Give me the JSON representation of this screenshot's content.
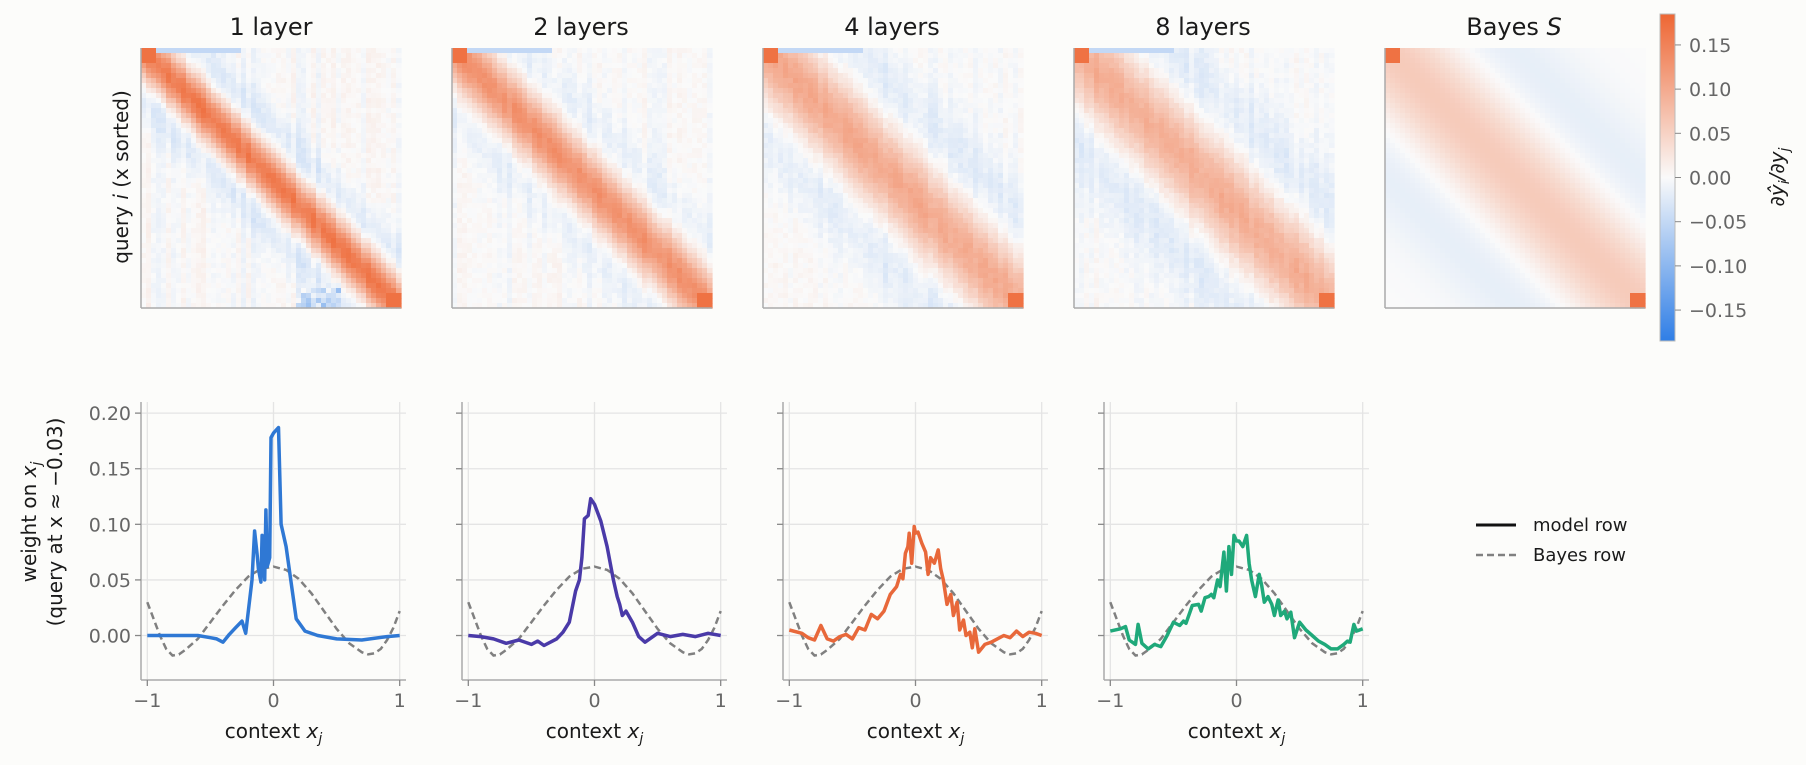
{
  "figure": {
    "background": "#fcfcfa"
  },
  "heatmaps": {
    "titles": [
      "1 layer",
      "2 layers",
      "4 layers",
      "8 layers"
    ],
    "bayes_title": "Bayes",
    "bayes_title_var": "S",
    "ylabel_prefix": "query",
    "ylabel_var": "i",
    "ylabel_suffix": "(x sorted)"
  },
  "colorbar": {
    "ticks": [
      "0.15",
      "0.10",
      "0.05",
      "0.00",
      "−0.05",
      "−0.10",
      "−0.15"
    ],
    "label": "∂ŷ_i/∂y_j",
    "low_color": "#2f7ee6",
    "mid_color": "#fafafa",
    "high_color": "#ee6633"
  },
  "lines": {
    "xlabel_prefix": "context",
    "xlabel_var": "x_j",
    "ylabel_line1": "weight on x_j",
    "ylabel_line2": "(query at x ≈ −0.03)",
    "xticks": [
      "−1",
      "0",
      "1"
    ],
    "yticks": [
      "0.20",
      "0.15",
      "0.10",
      "0.05",
      "0.00"
    ]
  },
  "legend": {
    "model": "model row",
    "bayes": "Bayes row"
  },
  "chart_data": {
    "type": "line",
    "xlim": [
      -1.05,
      1.05
    ],
    "ylim": [
      -0.04,
      0.21
    ],
    "grid": true,
    "legend_position": "right",
    "series_colors": [
      "#2f78d4",
      "#4a3aa8",
      "#e8683a",
      "#1fa97a"
    ],
    "bayes_row": {
      "x": [
        -1.0,
        -0.95,
        -0.9,
        -0.85,
        -0.8,
        -0.75,
        -0.7,
        -0.6,
        -0.5,
        -0.4,
        -0.3,
        -0.2,
        -0.1,
        0.0,
        0.1,
        0.2,
        0.3,
        0.4,
        0.5,
        0.6,
        0.7,
        0.75,
        0.8,
        0.85,
        0.9,
        0.95,
        1.0
      ],
      "y": [
        0.03,
        0.015,
        0.0,
        -0.012,
        -0.018,
        -0.017,
        -0.013,
        -0.003,
        0.012,
        0.027,
        0.041,
        0.053,
        0.06,
        0.062,
        0.059,
        0.051,
        0.038,
        0.022,
        0.006,
        -0.007,
        -0.015,
        -0.017,
        -0.016,
        -0.012,
        -0.004,
        0.007,
        0.022
      ]
    },
    "panels": [
      {
        "x": [
          -1.0,
          -0.8,
          -0.6,
          -0.5,
          -0.45,
          -0.4,
          -0.35,
          -0.3,
          -0.25,
          -0.22,
          -0.17,
          -0.15,
          -0.13,
          -0.12,
          -0.1,
          -0.09,
          -0.07,
          -0.06,
          -0.05,
          -0.03,
          -0.02,
          0.0,
          0.04,
          0.06,
          0.1,
          0.18,
          0.25,
          0.35,
          0.5,
          0.7,
          0.9,
          1.0
        ],
        "y": [
          0.0,
          0.0,
          0.0,
          -0.002,
          -0.003,
          -0.006,
          0.001,
          0.007,
          0.013,
          0.002,
          0.05,
          0.094,
          0.073,
          0.06,
          0.048,
          0.09,
          0.05,
          0.113,
          0.062,
          0.07,
          0.178,
          0.182,
          0.187,
          0.1,
          0.08,
          0.015,
          0.004,
          0.0,
          -0.003,
          -0.004,
          -0.001,
          0.0
        ]
      },
      {
        "x": [
          -1.0,
          -0.9,
          -0.8,
          -0.7,
          -0.6,
          -0.5,
          -0.45,
          -0.4,
          -0.3,
          -0.25,
          -0.2,
          -0.15,
          -0.12,
          -0.1,
          -0.08,
          -0.05,
          -0.03,
          0.0,
          0.05,
          0.1,
          0.15,
          0.18,
          0.2,
          0.22,
          0.25,
          0.3,
          0.35,
          0.4,
          0.5,
          0.6,
          0.7,
          0.8,
          0.9,
          1.0
        ],
        "y": [
          0.0,
          -0.001,
          -0.003,
          -0.007,
          -0.004,
          -0.008,
          -0.005,
          -0.009,
          -0.003,
          0.003,
          0.012,
          0.04,
          0.05,
          0.07,
          0.105,
          0.108,
          0.123,
          0.118,
          0.103,
          0.08,
          0.05,
          0.035,
          0.028,
          0.018,
          0.022,
          0.012,
          -0.001,
          -0.006,
          0.002,
          -0.001,
          0.001,
          -0.001,
          0.002,
          0.0
        ]
      },
      {
        "x": [
          -1.0,
          -0.9,
          -0.85,
          -0.8,
          -0.75,
          -0.7,
          -0.65,
          -0.6,
          -0.55,
          -0.5,
          -0.45,
          -0.4,
          -0.35,
          -0.3,
          -0.25,
          -0.2,
          -0.15,
          -0.12,
          -0.1,
          -0.08,
          -0.06,
          -0.05,
          -0.03,
          -0.01,
          0.0,
          0.02,
          0.05,
          0.08,
          0.1,
          0.12,
          0.15,
          0.18,
          0.2,
          0.22,
          0.25,
          0.28,
          0.3,
          0.33,
          0.35,
          0.38,
          0.4,
          0.43,
          0.45,
          0.47,
          0.5,
          0.55,
          0.6,
          0.7,
          0.75,
          0.8,
          0.85,
          0.9,
          0.95,
          1.0
        ],
        "y": [
          0.005,
          0.002,
          -0.002,
          -0.004,
          0.009,
          -0.003,
          -0.005,
          -0.001,
          0.001,
          -0.003,
          0.007,
          0.005,
          0.019,
          0.015,
          0.022,
          0.037,
          0.044,
          0.055,
          0.051,
          0.074,
          0.08,
          0.092,
          0.065,
          0.098,
          0.092,
          0.093,
          0.083,
          0.075,
          0.055,
          0.07,
          0.065,
          0.077,
          0.06,
          0.05,
          0.028,
          0.037,
          0.018,
          0.03,
          0.005,
          0.014,
          0.0,
          0.003,
          -0.011,
          0.006,
          -0.015,
          -0.008,
          -0.006,
          0.0,
          -0.002,
          0.004,
          -0.001,
          0.003,
          0.002,
          0.0
        ]
      },
      {
        "x": [
          -1.0,
          -0.92,
          -0.88,
          -0.85,
          -0.8,
          -0.78,
          -0.75,
          -0.7,
          -0.65,
          -0.6,
          -0.55,
          -0.5,
          -0.45,
          -0.42,
          -0.4,
          -0.35,
          -0.3,
          -0.28,
          -0.25,
          -0.22,
          -0.2,
          -0.18,
          -0.15,
          -0.13,
          -0.1,
          -0.08,
          -0.06,
          -0.04,
          -0.02,
          0.0,
          0.02,
          0.05,
          0.08,
          0.1,
          0.12,
          0.15,
          0.18,
          0.2,
          0.22,
          0.25,
          0.28,
          0.3,
          0.33,
          0.35,
          0.38,
          0.4,
          0.43,
          0.46,
          0.5,
          0.55,
          0.6,
          0.65,
          0.7,
          0.75,
          0.8,
          0.85,
          0.88,
          0.9,
          0.93,
          0.95,
          1.0
        ],
        "y": [
          0.004,
          0.006,
          0.008,
          -0.004,
          -0.008,
          0.01,
          -0.007,
          -0.012,
          -0.008,
          -0.01,
          0.0,
          0.012,
          0.009,
          0.013,
          0.011,
          0.027,
          0.028,
          0.022,
          0.034,
          0.035,
          0.037,
          0.034,
          0.05,
          0.044,
          0.075,
          0.04,
          0.08,
          0.055,
          0.09,
          0.085,
          0.085,
          0.08,
          0.09,
          0.065,
          0.05,
          0.035,
          0.055,
          0.045,
          0.03,
          0.035,
          0.028,
          0.018,
          0.032,
          0.018,
          0.022,
          0.015,
          0.021,
          -0.002,
          0.012,
          0.005,
          0.0,
          -0.005,
          -0.008,
          -0.012,
          -0.012,
          -0.008,
          -0.005,
          -0.006,
          0.01,
          0.004,
          0.006
        ]
      }
    ]
  }
}
